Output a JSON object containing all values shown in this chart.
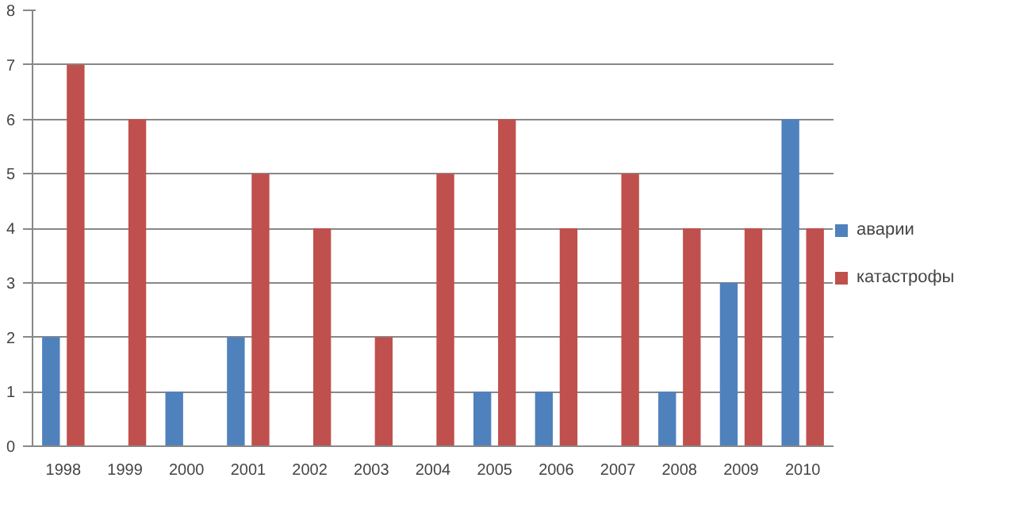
{
  "chart_data": {
    "type": "bar",
    "categories": [
      "1998",
      "1999",
      "2000",
      "2001",
      "2002",
      "2003",
      "2004",
      "2005",
      "2006",
      "2007",
      "2008",
      "2009",
      "2010"
    ],
    "series": [
      {
        "name": "аварии",
        "color": "#4f81bd",
        "values": [
          2,
          0,
          1,
          2,
          0,
          0,
          0,
          1,
          1,
          0,
          1,
          3,
          6
        ]
      },
      {
        "name": "катастрофы",
        "color": "#c0504d",
        "values": [
          7,
          6,
          0,
          5,
          4,
          2,
          5,
          6,
          4,
          5,
          4,
          4,
          4
        ]
      }
    ],
    "ylim": [
      0,
      8
    ],
    "yticks": [
      0,
      1,
      2,
      3,
      4,
      5,
      6,
      7,
      8
    ],
    "grid": "y",
    "legend": "right"
  }
}
